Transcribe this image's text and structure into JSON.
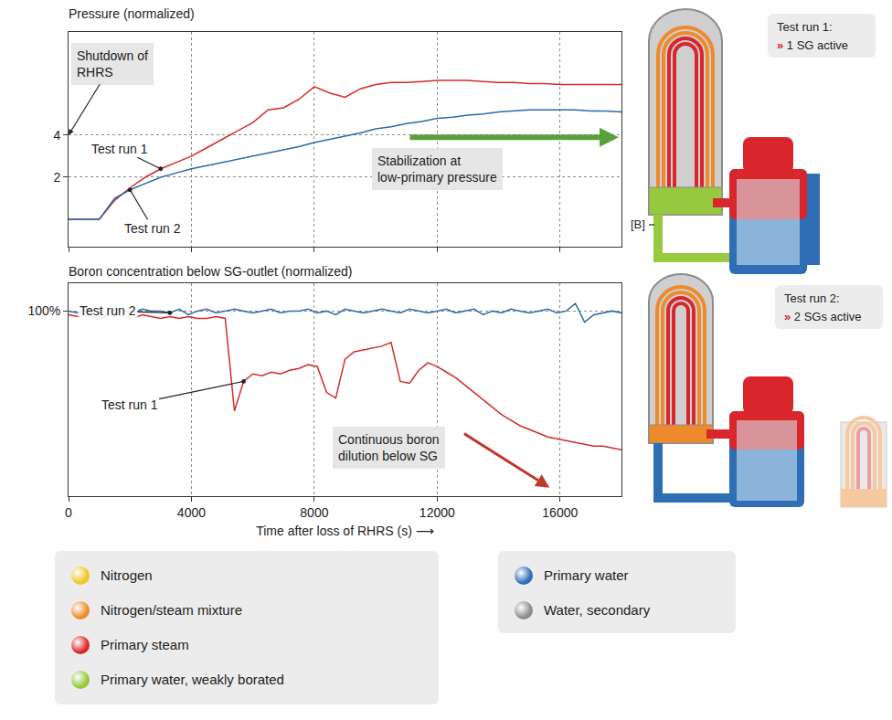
{
  "chart_data": [
    {
      "type": "line",
      "title": "Pressure (normalized)",
      "x": [
        0,
        500,
        1000,
        1500,
        2000,
        2500,
        3000,
        3500,
        4000,
        4500,
        5000,
        5500,
        6000,
        6500,
        7000,
        7500,
        8000,
        8500,
        9000,
        9500,
        10000,
        10500,
        11000,
        11500,
        12000,
        12500,
        13000,
        13500,
        14000,
        14500,
        15000,
        15500,
        16000,
        16500,
        17000,
        17500,
        18000
      ],
      "xlim": [
        0,
        18000
      ],
      "xticks": [
        0,
        4000,
        8000,
        12000,
        16000
      ],
      "ylim": [
        -1.3,
        8.9
      ],
      "yticks": [
        2,
        4
      ],
      "grid": true,
      "tick_labels": "y",
      "series": [
        {
          "name": "Test run 1",
          "color": "#d42a2a",
          "values": [
            0,
            0,
            0,
            0.9,
            1.5,
            2.0,
            2.4,
            2.7,
            3.0,
            3.4,
            3.8,
            4.2,
            4.6,
            5.2,
            5.3,
            5.7,
            6.3,
            6.0,
            5.8,
            6.2,
            6.4,
            6.5,
            6.5,
            6.55,
            6.6,
            6.6,
            6.6,
            6.55,
            6.5,
            6.5,
            6.45,
            6.45,
            6.4,
            6.4,
            6.4,
            6.4,
            6.4
          ]
        },
        {
          "name": "Test run 2",
          "color": "#2c6aa6",
          "values": [
            0,
            0,
            0,
            1.0,
            1.4,
            1.7,
            2.0,
            2.2,
            2.4,
            2.55,
            2.7,
            2.85,
            3.0,
            3.15,
            3.3,
            3.45,
            3.65,
            3.8,
            3.95,
            4.1,
            4.3,
            4.4,
            4.55,
            4.65,
            4.8,
            4.85,
            4.95,
            5.0,
            5.1,
            5.15,
            5.2,
            5.2,
            5.2,
            5.2,
            5.15,
            5.15,
            5.1
          ]
        }
      ],
      "annotations": [
        "Shutdown of RHRS",
        "Stabilization at low-primary pressure"
      ]
    },
    {
      "type": "line",
      "title": "Boron concentration below SG-outlet (normalized)",
      "x_label": "Time after loss of RHRS (s) ⟶",
      "x": [
        0,
        300,
        600,
        900,
        1200,
        1500,
        1800,
        2100,
        2400,
        2700,
        3000,
        3300,
        3600,
        3900,
        4200,
        4500,
        4800,
        5100,
        5400,
        5700,
        6000,
        6300,
        6600,
        6900,
        7200,
        7500,
        7800,
        8100,
        8400,
        8700,
        9000,
        9300,
        9600,
        9900,
        10200,
        10500,
        10800,
        11100,
        11400,
        11700,
        12000,
        12300,
        12600,
        12900,
        13200,
        13500,
        13800,
        14100,
        14400,
        14700,
        15000,
        15300,
        15600,
        15900,
        16200,
        16500,
        16800,
        17100,
        17400,
        17700,
        18000
      ],
      "xlim": [
        0,
        18000
      ],
      "xticks": [
        0,
        4000,
        8000,
        12000,
        16000
      ],
      "ylim": [
        0,
        115
      ],
      "yticks": [
        {
          "value": 100,
          "label": "100%"
        }
      ],
      "grid": true,
      "series": [
        {
          "name": "Test run 1",
          "color": "#d42a2a",
          "values": [
            98,
            97,
            98,
            96,
            97,
            98,
            97,
            96,
            98,
            97,
            96,
            97,
            96,
            97,
            96,
            96,
            97,
            96,
            46,
            62,
            66,
            65,
            67,
            66,
            68,
            69,
            71,
            70,
            56,
            53,
            74,
            78,
            79,
            80,
            81,
            83,
            62,
            61,
            68,
            72,
            70,
            67,
            64,
            60,
            56,
            52,
            48,
            44,
            41,
            38,
            36,
            34,
            32,
            31,
            30,
            29,
            28,
            27,
            27,
            26,
            25
          ]
        },
        {
          "name": "Test run 2",
          "color": "#2c6aa6",
          "values": [
            100,
            99,
            101,
            100,
            98,
            101,
            100,
            99,
            101,
            100,
            100,
            99,
            101,
            98,
            100,
            101,
            99,
            100,
            101,
            100,
            99,
            100,
            101,
            99,
            100,
            100,
            101,
            99,
            100,
            98,
            101,
            100,
            99,
            100,
            101,
            100,
            99,
            101,
            100,
            99,
            100,
            101,
            99,
            100,
            101,
            98,
            100,
            99,
            101,
            100,
            99,
            100,
            101,
            99,
            100,
            104,
            94,
            98,
            99,
            100,
            99
          ]
        }
      ],
      "annotations": [
        "Continuous boron dilution below SG"
      ]
    }
  ],
  "diagrams": [
    {
      "title": "Test run 1:",
      "detail": "» 1 SG active",
      "marker_label": "[B]"
    },
    {
      "title": "Test run 2:",
      "detail": "» 2 SGs active"
    }
  ],
  "figure_legend": [
    {
      "name": "Nitrogen",
      "color": "#f2c521"
    },
    {
      "name": "Nitrogen/steam mixture",
      "color": "#ee8a2c"
    },
    {
      "name": "Primary steam",
      "color": "#d9262c"
    },
    {
      "name": "Primary water, weakly borated",
      "color": "#96c93d"
    },
    {
      "name": "Primary water",
      "color": "#2f6db5"
    },
    {
      "name": "Water, secondary",
      "color": "#8c8c8c"
    }
  ]
}
